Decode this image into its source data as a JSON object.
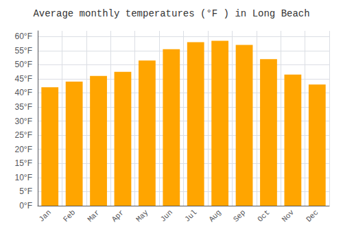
{
  "chart_data": {
    "type": "bar",
    "title": "Average monthly temperatures (°F ) in Long Beach",
    "categories": [
      "Jan",
      "Feb",
      "Mar",
      "Apr",
      "May",
      "Jun",
      "Jul",
      "Aug",
      "Sep",
      "Oct",
      "Nov",
      "Dec"
    ],
    "values": [
      42,
      44,
      46,
      47.5,
      51.5,
      55.5,
      58,
      58.5,
      57,
      52,
      46.5,
      43
    ],
    "color": "#FFA500",
    "ylim": [
      0,
      62
    ],
    "yticks": [
      {
        "value": 0,
        "label": "0°F"
      },
      {
        "value": 5,
        "label": "5°F"
      },
      {
        "value": 10,
        "label": "10°F"
      },
      {
        "value": 15,
        "label": "15°F"
      },
      {
        "value": 20,
        "label": "20°F"
      },
      {
        "value": 25,
        "label": "25°F"
      },
      {
        "value": 30,
        "label": "30°F"
      },
      {
        "value": 35,
        "label": "35°F"
      },
      {
        "value": 40,
        "label": "40°F"
      },
      {
        "value": 45,
        "label": "45°F"
      },
      {
        "value": 50,
        "label": "50°F"
      },
      {
        "value": 55,
        "label": "55°F"
      },
      {
        "value": 60,
        "label": "60°F"
      }
    ],
    "grid": true
  }
}
